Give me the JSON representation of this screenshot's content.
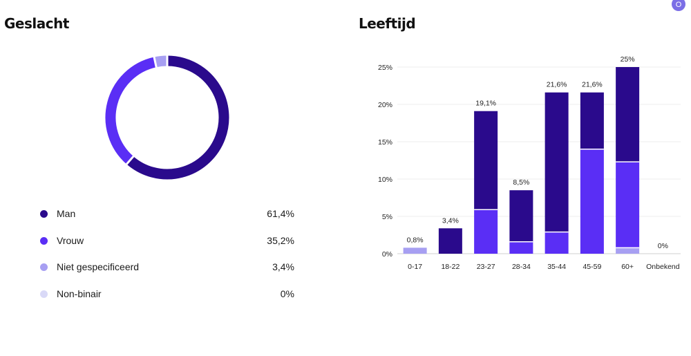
{
  "gender": {
    "title": "Geslacht",
    "badge": "O",
    "legend": [
      {
        "label": "Man",
        "value": "61,4%",
        "color": "#2a0a8c"
      },
      {
        "label": "Vrouw",
        "value": "35,2%",
        "color": "#5a2ef5"
      },
      {
        "label": "Niet gespecificeerd",
        "value": "3,4%",
        "color": "#a79ff2"
      },
      {
        "label": "Non-binair",
        "value": "0%",
        "color": "#d9d9f7"
      }
    ]
  },
  "age": {
    "title": "Leeftijd"
  },
  "chart_data": [
    {
      "type": "pie",
      "variant": "donut",
      "categories": [
        "Man",
        "Vrouw",
        "Niet gespecificeerd",
        "Non-binair"
      ],
      "values": [
        61.4,
        35.2,
        3.4,
        0
      ],
      "colors": [
        "#2a0a8c",
        "#5a2ef5",
        "#a79ff2",
        "#d9d9f7"
      ]
    },
    {
      "type": "bar",
      "stacked": true,
      "categories": [
        "0-17",
        "18-22",
        "23-27",
        "28-34",
        "35-44",
        "45-59",
        "60+",
        "Onbekend"
      ],
      "totals": [
        0.8,
        3.4,
        19.1,
        8.5,
        21.6,
        21.6,
        25,
        0
      ],
      "total_labels": [
        "0,8%",
        "3,4%",
        "19,1%",
        "8,5%",
        "21,6%",
        "21,6%",
        "25%",
        "0%"
      ],
      "series": [
        {
          "values": [
            0.8,
            0,
            0,
            0,
            0,
            0,
            0.8,
            0
          ],
          "color": "#a79ff2"
        },
        {
          "values": [
            0,
            0,
            5.9,
            1.6,
            2.9,
            14,
            11.5,
            0
          ],
          "color": "#5a2ef5"
        },
        {
          "values": [
            0,
            3.4,
            13.2,
            6.9,
            18.7,
            7.6,
            12.7,
            0
          ],
          "color": "#2a0a8c"
        }
      ],
      "yticks": [
        0,
        5,
        10,
        15,
        20,
        25
      ],
      "ytick_labels": [
        "0%",
        "5%",
        "10%",
        "15%",
        "20%",
        "25%"
      ],
      "ylim": [
        0,
        25
      ],
      "grid": true
    }
  ]
}
